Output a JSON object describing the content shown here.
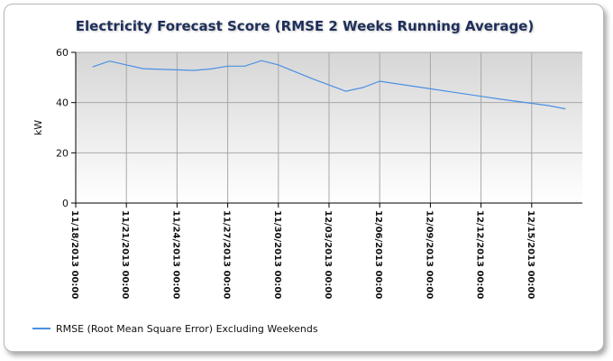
{
  "chart_data": {
    "type": "line",
    "title": "Electricity Forecast Score (RMSE 2 Weeks Running Average)",
    "ylabel": "kW",
    "xlabel": "",
    "ylim": [
      0,
      60
    ],
    "yticks": [
      0,
      20,
      40,
      60
    ],
    "xlim": [
      "2013-11-18",
      "2013-12-18"
    ],
    "xticks": [
      "11/18/2013 00:00",
      "11/21/2013 00:00",
      "11/24/2013 00:00",
      "11/27/2013 00:00",
      "11/30/2013 00:00",
      "12/03/2013 00:00",
      "12/06/2013 00:00",
      "12/09/2013 00:00",
      "12/12/2013 00:00",
      "12/15/2013 00:00"
    ],
    "grid": true,
    "legend_position": "bottom-left",
    "series": [
      {
        "name": "RMSE (Root Mean Square Error) Excluding Weekends",
        "color": "#4a90e2",
        "x": [
          "2013-11-19",
          "2013-11-20",
          "2013-11-21",
          "2013-11-22",
          "2013-11-25",
          "2013-11-26",
          "2013-11-27",
          "2013-11-28",
          "2013-11-29",
          "2013-11-30",
          "2013-12-02",
          "2013-12-04",
          "2013-12-05",
          "2013-12-06",
          "2013-12-09",
          "2013-12-12",
          "2013-12-13",
          "2013-12-16",
          "2013-12-17"
        ],
        "values": [
          54.2,
          56.5,
          55.0,
          53.5,
          52.8,
          53.4,
          54.5,
          54.5,
          56.7,
          55.0,
          49.5,
          44.5,
          46.0,
          48.5,
          45.5,
          42.5,
          41.5,
          38.8,
          37.5
        ]
      }
    ]
  }
}
